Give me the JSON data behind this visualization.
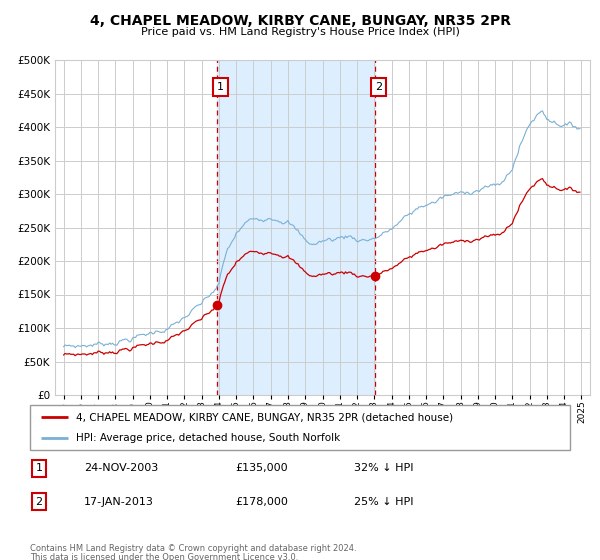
{
  "title": "4, CHAPEL MEADOW, KIRBY CANE, BUNGAY, NR35 2PR",
  "subtitle": "Price paid vs. HM Land Registry's House Price Index (HPI)",
  "legend_line1": "4, CHAPEL MEADOW, KIRBY CANE, BUNGAY, NR35 2PR (detached house)",
  "legend_line2": "HPI: Average price, detached house, South Norfolk",
  "footnote1": "Contains HM Land Registry data © Crown copyright and database right 2024.",
  "footnote2": "This data is licensed under the Open Government Licence v3.0.",
  "sale1_date": "24-NOV-2003",
  "sale1_price": "£135,000",
  "sale1_hpi": "32% ↓ HPI",
  "sale2_date": "17-JAN-2013",
  "sale2_price": "£178,000",
  "sale2_hpi": "25% ↓ HPI",
  "sale1_x": 2003.9,
  "sale1_y": 135000,
  "sale2_x": 2013.05,
  "sale2_y": 178000,
  "red_color": "#cc0000",
  "blue_color": "#7ab0d4",
  "shade_color": "#ddeeff",
  "background_color": "#ffffff",
  "grid_color": "#cccccc",
  "ylim": [
    0,
    500000
  ],
  "xlim": [
    1994.5,
    2025.5
  ]
}
